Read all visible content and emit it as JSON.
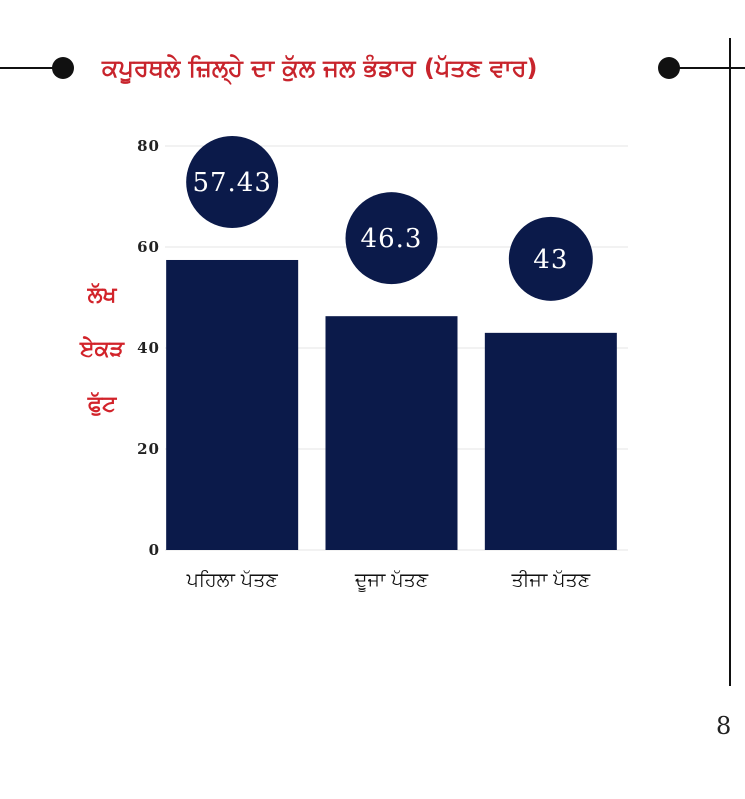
{
  "header": {
    "title": "ਕਪੂਰਥਲੇ ਜ਼ਿਲ੍ਹੇ ਦਾ ਕੁੱਲ ਜਲ ਭੰਡਾਰ (ਪੱਤਣ ਵਾਰ)"
  },
  "chart_data": {
    "type": "bar",
    "title": "ਕਪੂਰਥਲੇ ਜ਼ਿਲ੍ਹੇ ਦਾ ਕੁੱਲ ਜਲ ਭੰਡਾਰ (ਪੱਤਣ ਵਾਰ)",
    "categories": [
      "ਪਹਿਲਾ ਪੱਤਣ",
      "ਦੂਜਾ ਪੱਤਣ",
      "ਤੀਜਾ ਪੱਤਣ"
    ],
    "values": [
      57.43,
      46.3,
      43
    ],
    "data_labels": [
      "57.43",
      "46.3",
      "43"
    ],
    "ylabel_lines": [
      "ਲੱਖ",
      "ਏਕੜ",
      "ਫੁੱਟ"
    ],
    "ylim": [
      0,
      80
    ],
    "yticks": [
      0,
      20,
      40,
      60,
      80
    ],
    "grid": true,
    "bar_color": "#0b1a4a",
    "label_color": "#d2232a"
  },
  "page": {
    "number": "8"
  }
}
